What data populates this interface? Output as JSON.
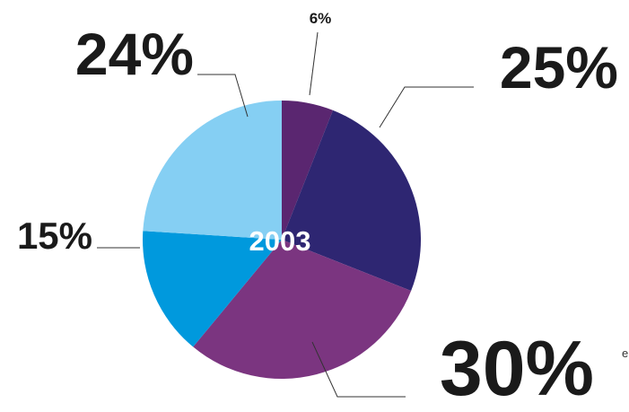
{
  "chart_data": {
    "type": "pie",
    "center_label": "2003",
    "slices": [
      {
        "label": "6%",
        "value": 6,
        "color": "#5a2670"
      },
      {
        "label": "25%",
        "value": 25,
        "color": "#2e2672"
      },
      {
        "label": "30%",
        "value": 30,
        "color": "#7b3580"
      },
      {
        "label": "15%",
        "value": 15,
        "color": "#0099dd"
      },
      {
        "label": "24%",
        "value": 24,
        "color": "#85cff3"
      }
    ],
    "start": "12 o'clock",
    "direction": "clockwise"
  },
  "edge_text": "e"
}
